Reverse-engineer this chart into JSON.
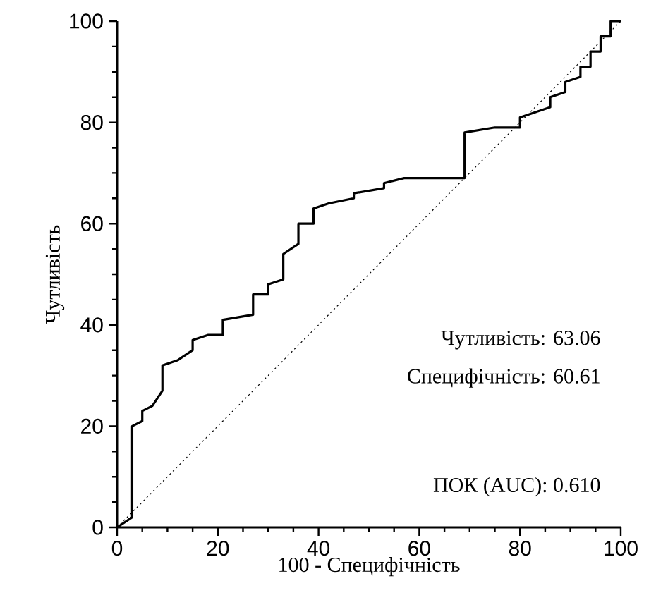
{
  "chart_data": {
    "type": "line",
    "xlabel": "100 - Специфічність",
    "ylabel": "Чутливість",
    "xlim": [
      0,
      100
    ],
    "ylim": [
      0,
      100
    ],
    "xticks": [
      0,
      20,
      40,
      60,
      80,
      100
    ],
    "yticks": [
      0,
      20,
      40,
      60,
      80,
      100
    ],
    "marker": "none",
    "series": [
      {
        "color": "#000000",
        "line_style": "solid",
        "x": [
          0,
          3,
          3,
          5,
          5,
          7,
          9,
          9,
          12,
          15,
          15,
          18,
          21,
          21,
          27,
          27,
          30,
          30,
          33,
          33,
          36,
          36,
          39,
          39,
          42,
          47,
          47,
          53,
          53,
          57,
          69,
          69,
          75,
          80,
          80,
          83,
          86,
          86,
          89,
          89,
          92,
          92,
          94,
          94,
          96,
          96,
          98,
          98,
          100
        ],
        "values": [
          0,
          2,
          20,
          21,
          23,
          24,
          27,
          32,
          33,
          35,
          37,
          38,
          38,
          41,
          42,
          46,
          46,
          48,
          49,
          54,
          56,
          60,
          60,
          63,
          64,
          65,
          66,
          67,
          68,
          69,
          69,
          78,
          79,
          79,
          81,
          82,
          83,
          85,
          86,
          88,
          89,
          91,
          91,
          94,
          94,
          97,
          97,
          100,
          100
        ]
      },
      {
        "color": "#000000",
        "line_style": "dotted",
        "x": [
          0,
          100
        ],
        "values": [
          0,
          100
        ]
      }
    ],
    "annotations": [
      "Чутливість: 63.06",
      "Специфічність: 60.61",
      "ПОК (AUC): 0.610"
    ]
  }
}
